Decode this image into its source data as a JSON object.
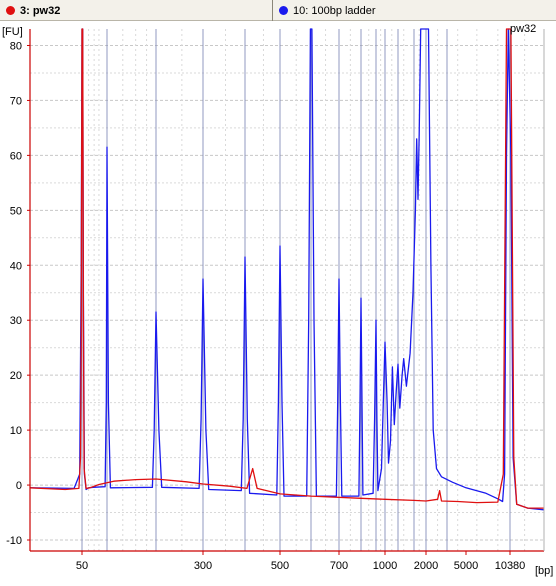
{
  "legend": {
    "items": [
      {
        "label": "3: pw32",
        "color": "#e01010",
        "selected": true
      },
      {
        "label": "10: 100bp ladder",
        "color": "#1a1aee",
        "selected": false
      }
    ]
  },
  "chart_data": {
    "type": "line",
    "y_unit_label": "[FU]",
    "x_unit_label": "[bp]",
    "peak_annotation": "pw32",
    "ylim": [
      -12,
      83
    ],
    "y_ticks": [
      -10,
      0,
      10,
      20,
      30,
      40,
      50,
      60,
      70,
      80
    ],
    "x_tick_labels": [
      "50",
      "300",
      "500",
      "700",
      "1000",
      "2000",
      "5000",
      "10380"
    ],
    "grid": true,
    "colors": {
      "sample": "#e01010",
      "ladder": "#1a1aee",
      "ladder_markers": "#7e87b8",
      "grid_major": "#c8c8c8",
      "grid_minor": "#d9d9d9"
    },
    "ladder_marker_x_bp": [
      50,
      100,
      200,
      300,
      400,
      500,
      600,
      700,
      800,
      900,
      1000,
      1200,
      1500,
      2000,
      3000,
      10380
    ],
    "series": [
      {
        "name": "3: pw32",
        "points": [
          {
            "x": 25,
            "y": -0.5
          },
          {
            "x": 40,
            "y": -0.8
          },
          {
            "x": 48,
            "y": -0.6
          },
          {
            "x": 49,
            "y": 5
          },
          {
            "x": 49.5,
            "y": 25
          },
          {
            "x": 50,
            "y": 83
          },
          {
            "x": 51,
            "y": 83
          },
          {
            "x": 52,
            "y": 30
          },
          {
            "x": 53,
            "y": 3
          },
          {
            "x": 56,
            "y": -0.6
          },
          {
            "x": 62,
            "y": -0.5
          },
          {
            "x": 80,
            "y": 0.1
          },
          {
            "x": 110,
            "y": 0.7
          },
          {
            "x": 150,
            "y": 1.0
          },
          {
            "x": 200,
            "y": 1.1
          },
          {
            "x": 260,
            "y": 0.6
          },
          {
            "x": 300,
            "y": 0.2
          },
          {
            "x": 360,
            "y": -0.2
          },
          {
            "x": 405,
            "y": -0.6
          },
          {
            "x": 420,
            "y": 3.0
          },
          {
            "x": 432,
            "y": -0.6
          },
          {
            "x": 500,
            "y": -1.6
          },
          {
            "x": 600,
            "y": -2.0
          },
          {
            "x": 800,
            "y": -2.4
          },
          {
            "x": 1000,
            "y": -2.6
          },
          {
            "x": 1500,
            "y": -2.8
          },
          {
            "x": 2000,
            "y": -2.9
          },
          {
            "x": 2500,
            "y": -2.6
          },
          {
            "x": 2600,
            "y": -1.0
          },
          {
            "x": 2700,
            "y": -2.9
          },
          {
            "x": 4000,
            "y": -3.0
          },
          {
            "x": 6000,
            "y": -3.2
          },
          {
            "x": 8500,
            "y": -3.1
          },
          {
            "x": 9300,
            "y": 2
          },
          {
            "x": 9800,
            "y": 83
          },
          {
            "x": 10500,
            "y": 83
          },
          {
            "x": 10900,
            "y": 5
          },
          {
            "x": 11300,
            "y": -3.5
          },
          {
            "x": 13000,
            "y": -4.2
          },
          {
            "x": 16000,
            "y": -4.2
          }
        ]
      },
      {
        "name": "10: 100bp ladder",
        "points": [
          {
            "x": 25,
            "y": -0.5
          },
          {
            "x": 45,
            "y": -0.6
          },
          {
            "x": 48.5,
            "y": 2
          },
          {
            "x": 49.5,
            "y": 40
          },
          {
            "x": 50,
            "y": 83
          },
          {
            "x": 51,
            "y": 83
          },
          {
            "x": 52,
            "y": 35
          },
          {
            "x": 53.5,
            "y": 2
          },
          {
            "x": 56,
            "y": -0.8
          },
          {
            "x": 60,
            "y": -0.5
          },
          {
            "x": 68,
            "y": -0.4
          },
          {
            "x": 95,
            "y": -0.3
          },
          {
            "x": 98,
            "y": 15
          },
          {
            "x": 100,
            "y": 61.5
          },
          {
            "x": 102,
            "y": 15
          },
          {
            "x": 105,
            "y": -0.5
          },
          {
            "x": 190,
            "y": -0.4
          },
          {
            "x": 195,
            "y": 10
          },
          {
            "x": 200,
            "y": 31.5
          },
          {
            "x": 205,
            "y": 10
          },
          {
            "x": 210,
            "y": -0.4
          },
          {
            "x": 290,
            "y": -0.6
          },
          {
            "x": 295,
            "y": 12
          },
          {
            "x": 300,
            "y": 37.5
          },
          {
            "x": 306,
            "y": 10
          },
          {
            "x": 312,
            "y": -0.8
          },
          {
            "x": 390,
            "y": -1.0
          },
          {
            "x": 395,
            "y": 12
          },
          {
            "x": 400,
            "y": 41.5
          },
          {
            "x": 406,
            "y": 12
          },
          {
            "x": 412,
            "y": -1.5
          },
          {
            "x": 490,
            "y": -1.8
          },
          {
            "x": 495,
            "y": 15
          },
          {
            "x": 500,
            "y": 43.5
          },
          {
            "x": 506,
            "y": 15
          },
          {
            "x": 512,
            "y": -2.0
          },
          {
            "x": 585,
            "y": -2.0
          },
          {
            "x": 592,
            "y": 30
          },
          {
            "x": 598,
            "y": 83
          },
          {
            "x": 603,
            "y": 83
          },
          {
            "x": 610,
            "y": 30
          },
          {
            "x": 618,
            "y": -2.0
          },
          {
            "x": 690,
            "y": -2.0
          },
          {
            "x": 695,
            "y": 15
          },
          {
            "x": 700,
            "y": 37.5
          },
          {
            "x": 706,
            "y": 15
          },
          {
            "x": 712,
            "y": -2.0
          },
          {
            "x": 790,
            "y": -2.0
          },
          {
            "x": 795,
            "y": 15
          },
          {
            "x": 800,
            "y": 34
          },
          {
            "x": 806,
            "y": 15
          },
          {
            "x": 812,
            "y": -1.8
          },
          {
            "x": 880,
            "y": -1.5
          },
          {
            "x": 890,
            "y": 12
          },
          {
            "x": 900,
            "y": 30
          },
          {
            "x": 910,
            "y": 12
          },
          {
            "x": 920,
            "y": -1
          },
          {
            "x": 960,
            "y": 3
          },
          {
            "x": 980,
            "y": 15
          },
          {
            "x": 1000,
            "y": 26
          },
          {
            "x": 1030,
            "y": 15
          },
          {
            "x": 1050,
            "y": 4
          },
          {
            "x": 1080,
            "y": 8
          },
          {
            "x": 1110,
            "y": 21.5
          },
          {
            "x": 1140,
            "y": 11
          },
          {
            "x": 1170,
            "y": 17
          },
          {
            "x": 1200,
            "y": 22
          },
          {
            "x": 1230,
            "y": 14
          },
          {
            "x": 1270,
            "y": 20
          },
          {
            "x": 1300,
            "y": 23
          },
          {
            "x": 1350,
            "y": 18
          },
          {
            "x": 1420,
            "y": 24
          },
          {
            "x": 1480,
            "y": 35
          },
          {
            "x": 1550,
            "y": 50
          },
          {
            "x": 1600,
            "y": 63
          },
          {
            "x": 1650,
            "y": 52
          },
          {
            "x": 1700,
            "y": 64
          },
          {
            "x": 1760,
            "y": 83
          },
          {
            "x": 1900,
            "y": 83
          },
          {
            "x": 2000,
            "y": 83
          },
          {
            "x": 2100,
            "y": 83
          },
          {
            "x": 2200,
            "y": 40
          },
          {
            "x": 2300,
            "y": 10
          },
          {
            "x": 2450,
            "y": 3
          },
          {
            "x": 2700,
            "y": 1.5
          },
          {
            "x": 3500,
            "y": 0.5
          },
          {
            "x": 5000,
            "y": -0.5
          },
          {
            "x": 7000,
            "y": -1.5
          },
          {
            "x": 8500,
            "y": -2.5
          },
          {
            "x": 9200,
            "y": -3.0
          },
          {
            "x": 9500,
            "y": 2
          },
          {
            "x": 9800,
            "y": 60
          },
          {
            "x": 10100,
            "y": 83
          },
          {
            "x": 10500,
            "y": 60
          },
          {
            "x": 10800,
            "y": 5
          },
          {
            "x": 11300,
            "y": -3.5
          },
          {
            "x": 13000,
            "y": -4.2
          },
          {
            "x": 16000,
            "y": -4.5
          }
        ]
      }
    ]
  }
}
